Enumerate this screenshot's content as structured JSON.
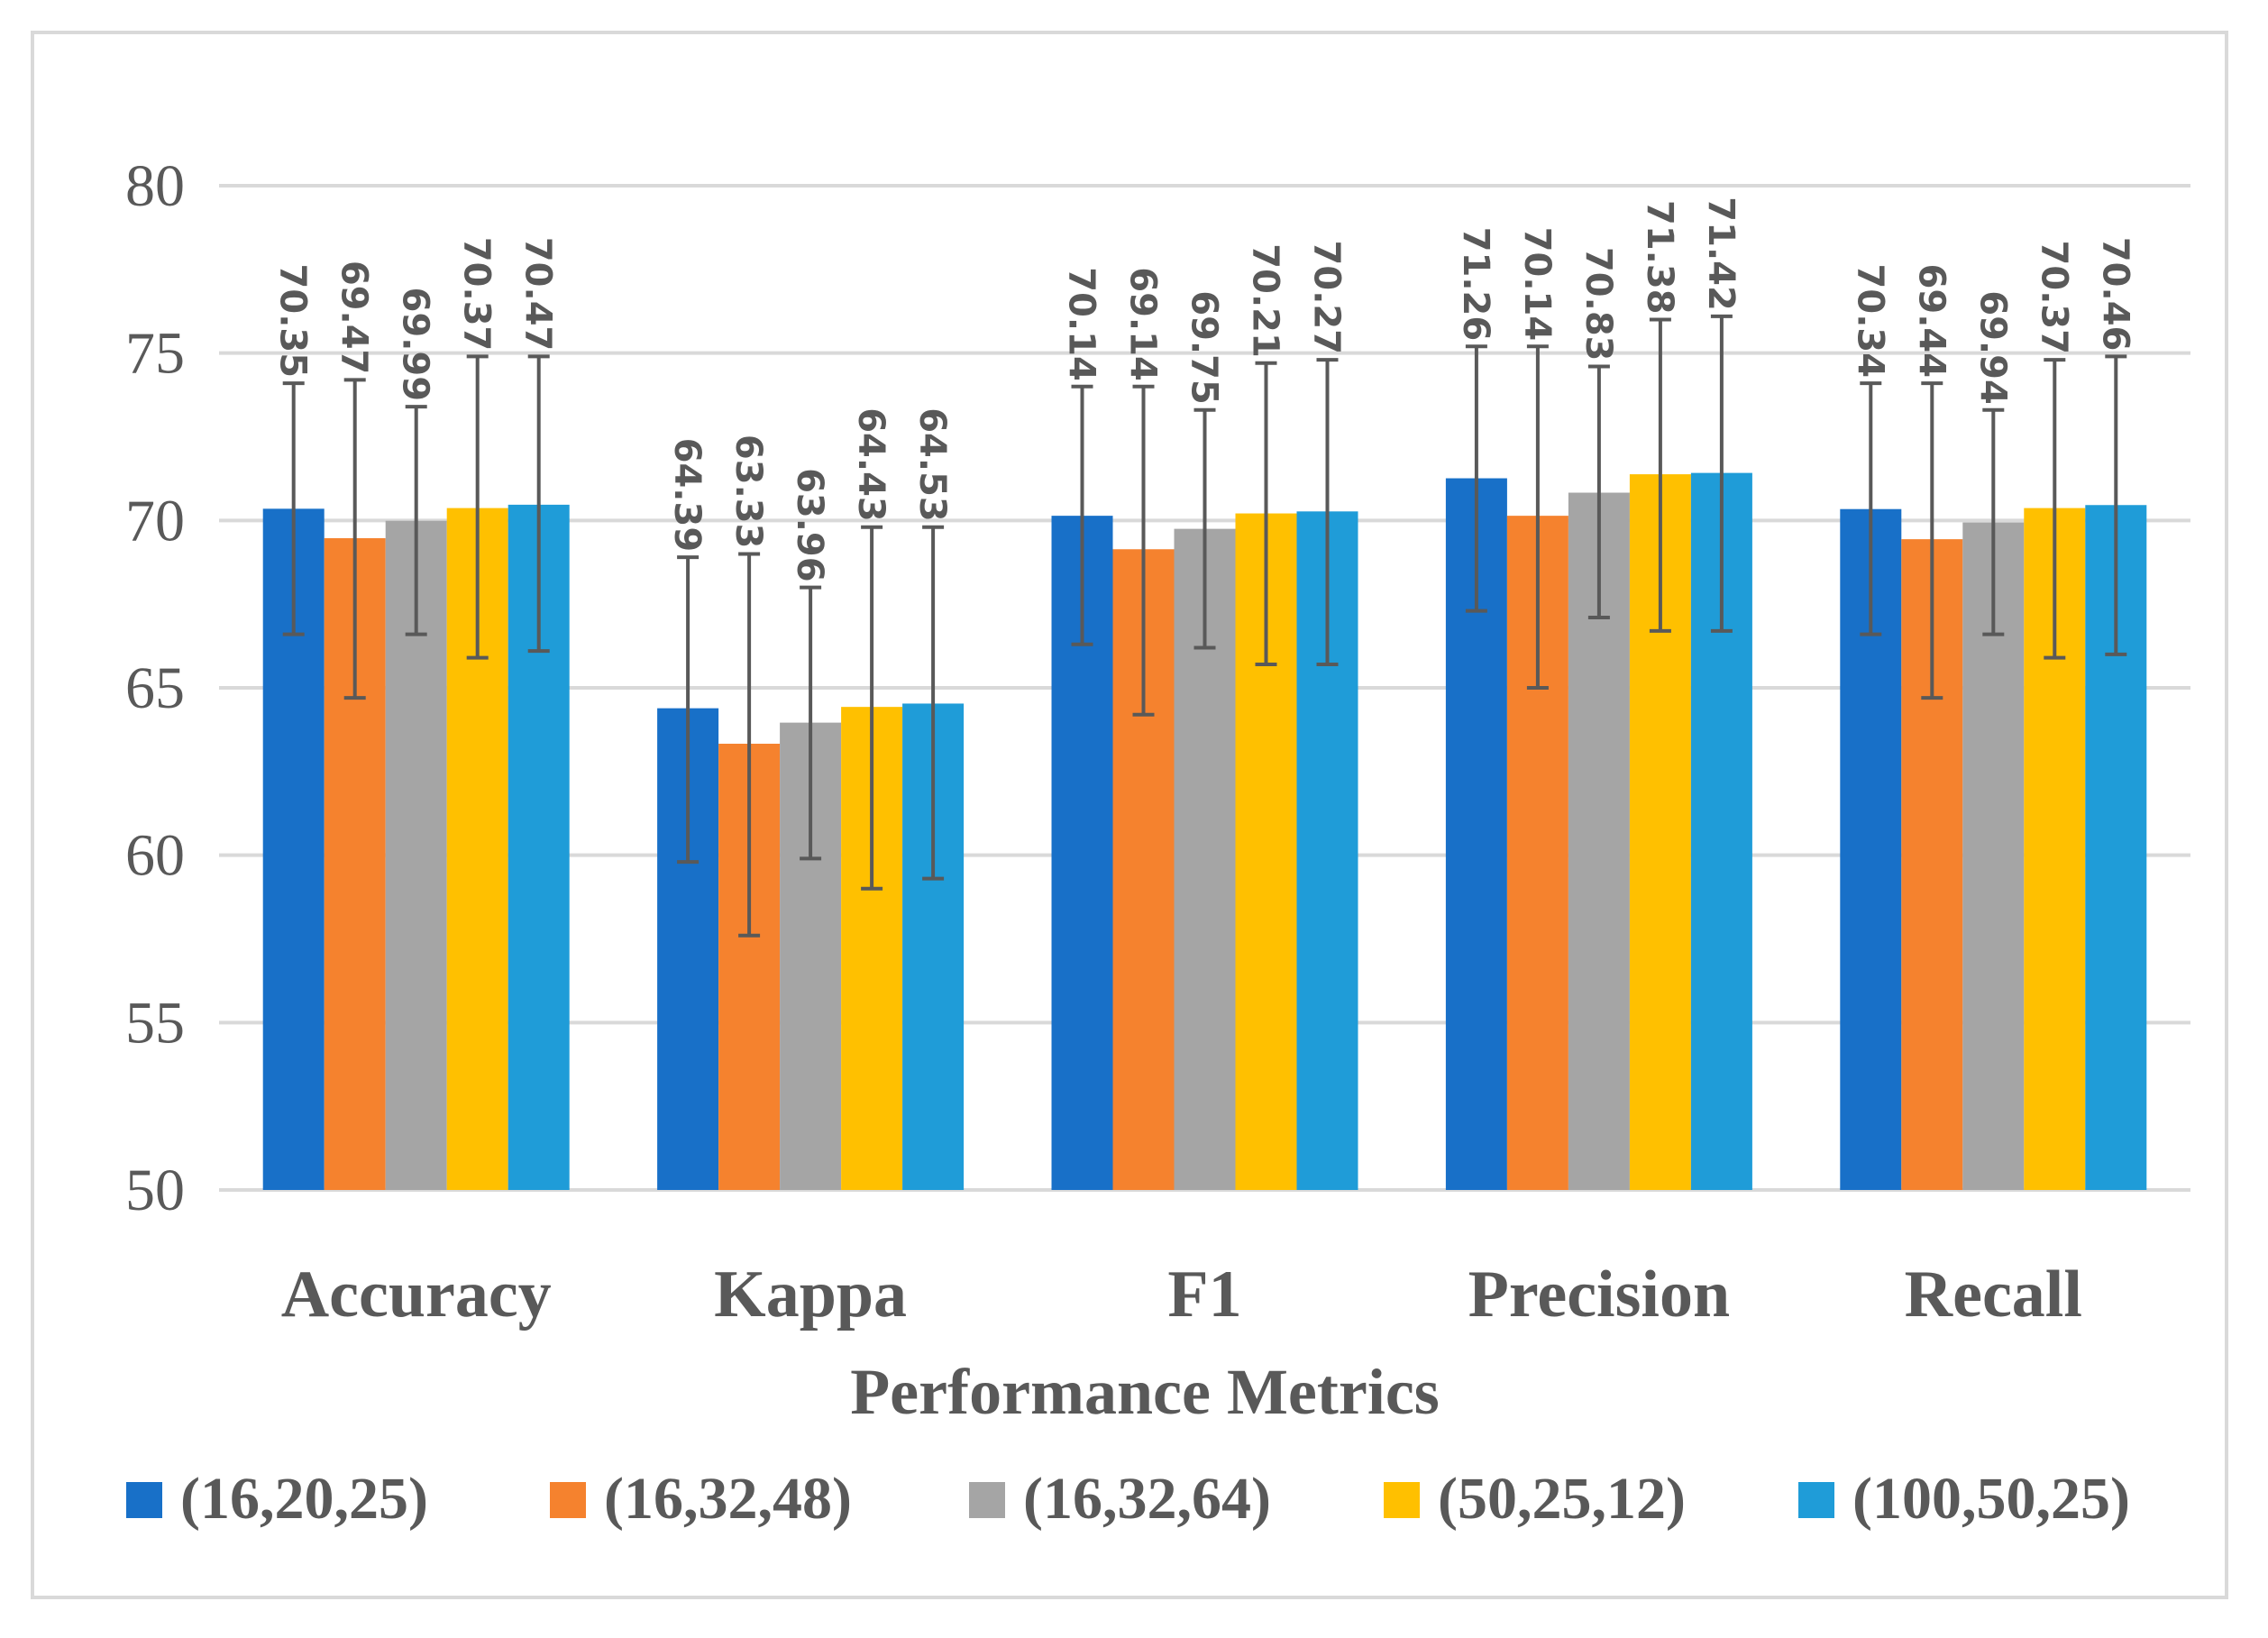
{
  "chart_data": {
    "type": "bar",
    "title": "",
    "xlabel": "Performance Metrics",
    "ylabel": "",
    "ylim": [
      50,
      80
    ],
    "yticks": [
      50,
      55,
      60,
      65,
      70,
      75,
      80
    ],
    "grid": true,
    "legend_position": "bottom",
    "categories": [
      "Accuracy",
      "Kappa",
      "F1",
      "Precision",
      "Recall"
    ],
    "series": [
      {
        "name": "(16,20,25)",
        "color": "#1870c8",
        "values": [
          70.35,
          64.39,
          70.14,
          71.26,
          70.34
        ],
        "labels": [
          "70.35",
          "64.39",
          "70.14",
          "71.26",
          "70.34"
        ],
        "error_low": [
          66.6,
          59.8,
          66.3,
          67.3,
          66.6
        ],
        "error_high": [
          74.1,
          68.9,
          74.0,
          75.2,
          74.1
        ]
      },
      {
        "name": "(16,32,48)",
        "color": "#f5822e",
        "values": [
          69.47,
          63.33,
          69.14,
          70.14,
          69.44
        ],
        "labels": [
          "69.47",
          "63.33",
          "69.14",
          "70.14",
          "69.44"
        ],
        "error_low": [
          64.7,
          57.6,
          64.2,
          65.0,
          64.7
        ],
        "error_high": [
          74.2,
          69.0,
          74.0,
          75.2,
          74.1
        ]
      },
      {
        "name": "(16,32,64)",
        "color": "#a5a5a5",
        "values": [
          69.99,
          63.96,
          69.75,
          70.83,
          69.94
        ],
        "labels": [
          "69.99",
          "63.96",
          "69.75",
          "70.83",
          "69.94"
        ],
        "error_low": [
          66.6,
          59.9,
          66.2,
          67.1,
          66.6
        ],
        "error_high": [
          73.4,
          68.0,
          73.3,
          74.6,
          73.3
        ]
      },
      {
        "name": "(50,25,12)",
        "color": "#ffc000",
        "values": [
          70.37,
          64.43,
          70.21,
          71.38,
          70.37
        ],
        "labels": [
          "70.37",
          "64.43",
          "70.21",
          "71.38",
          "70.37"
        ],
        "error_low": [
          65.9,
          59.0,
          65.7,
          66.7,
          65.9
        ],
        "error_high": [
          74.9,
          69.8,
          74.7,
          76.0,
          74.8
        ]
      },
      {
        "name": "(100,50,25)",
        "color": "#1f9cd8",
        "values": [
          70.47,
          64.53,
          70.27,
          71.42,
          70.46
        ],
        "labels": [
          "70.47",
          "64.53",
          "70.27",
          "71.42",
          "70.46"
        ],
        "error_low": [
          66.1,
          59.3,
          65.7,
          66.7,
          66.0
        ],
        "error_high": [
          74.9,
          69.8,
          74.8,
          76.1,
          74.9
        ]
      }
    ]
  },
  "style": {
    "grid_color": "#d9d9d9",
    "text_color": "#595959",
    "error_bar_color": "#595959",
    "frame_color": "#d9d9d9"
  }
}
